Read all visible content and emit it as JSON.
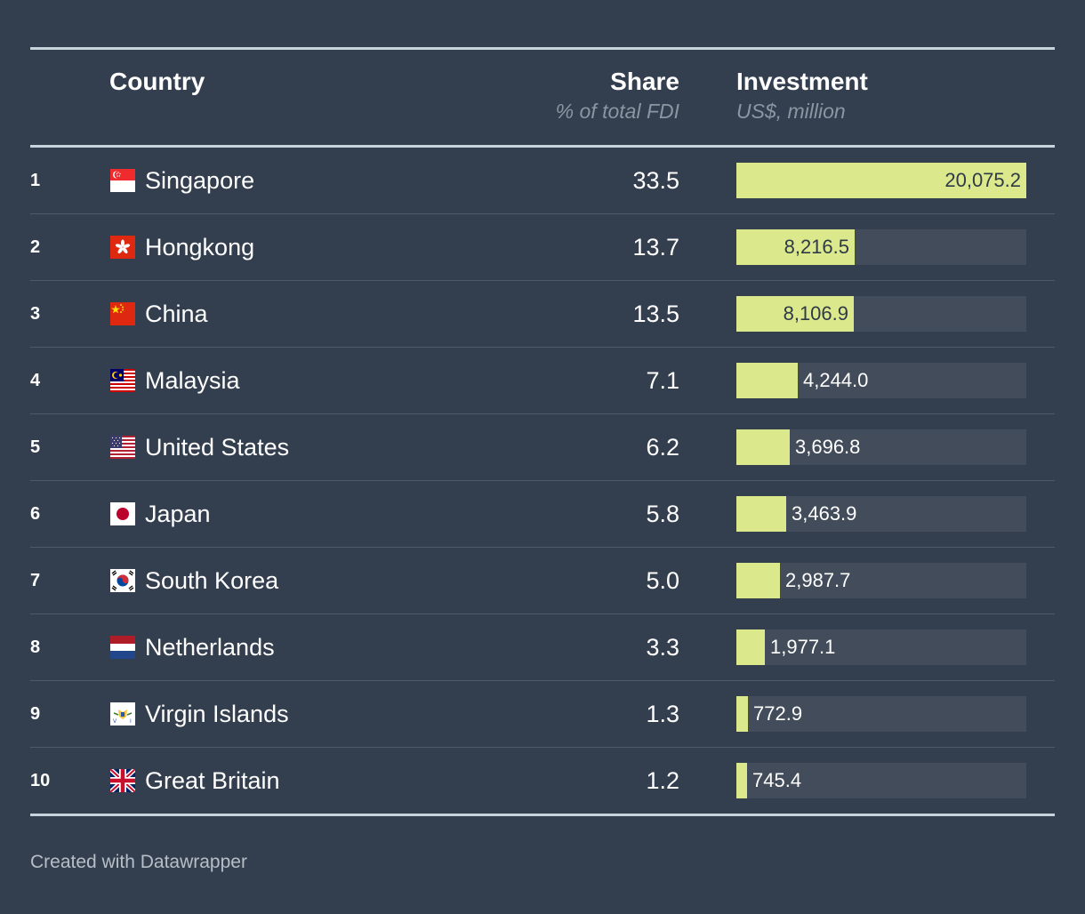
{
  "header": {
    "country_label": "Country",
    "share_label": "Share",
    "share_sub": "% of total FDI",
    "investment_label": "Investment",
    "investment_sub": "US$, million"
  },
  "colors": {
    "background": "#333e4e",
    "bar_fill": "#dbe88c",
    "bar_track": "#434c5a",
    "rule": "#c8d4dc",
    "subtitle": "#8c96a2"
  },
  "chart_data": {
    "type": "table",
    "columns": [
      "",
      "Country",
      "Share",
      "Investment"
    ],
    "column_subtitles": [
      "",
      "",
      "% of total FDI",
      "US$, million"
    ],
    "investment_max": 20075.2,
    "rows": [
      {
        "rank": "1",
        "country": "Singapore",
        "flag": "singapore-flag-icon",
        "share": "33.5",
        "investment": 20075.2,
        "investment_label": "20,075.2"
      },
      {
        "rank": "2",
        "country": "Hongkong",
        "flag": "hongkong-flag-icon",
        "share": "13.7",
        "investment": 8216.5,
        "investment_label": "8,216.5"
      },
      {
        "rank": "3",
        "country": "China",
        "flag": "china-flag-icon",
        "share": "13.5",
        "investment": 8106.9,
        "investment_label": "8,106.9"
      },
      {
        "rank": "4",
        "country": "Malaysia",
        "flag": "malaysia-flag-icon",
        "share": "7.1",
        "investment": 4244.0,
        "investment_label": "4,244.0"
      },
      {
        "rank": "5",
        "country": "United States",
        "flag": "usa-flag-icon",
        "share": "6.2",
        "investment": 3696.8,
        "investment_label": "3,696.8"
      },
      {
        "rank": "6",
        "country": "Japan",
        "flag": "japan-flag-icon",
        "share": "5.8",
        "investment": 3463.9,
        "investment_label": "3,463.9"
      },
      {
        "rank": "7",
        "country": "South Korea",
        "flag": "south-korea-flag-icon",
        "share": "5.0",
        "investment": 2987.7,
        "investment_label": "2,987.7"
      },
      {
        "rank": "8",
        "country": "Netherlands",
        "flag": "netherlands-flag-icon",
        "share": "3.3",
        "investment": 1977.1,
        "investment_label": "1,977.1"
      },
      {
        "rank": "9",
        "country": "Virgin Islands",
        "flag": "virgin-islands-flag-icon",
        "share": "1.3",
        "investment": 772.9,
        "investment_label": "772.9"
      },
      {
        "rank": "10",
        "country": "Great Britain",
        "flag": "great-britain-flag-icon",
        "share": "1.2",
        "investment": 745.4,
        "investment_label": "745.4"
      }
    ]
  },
  "footer": {
    "credit": "Created with Datawrapper"
  }
}
